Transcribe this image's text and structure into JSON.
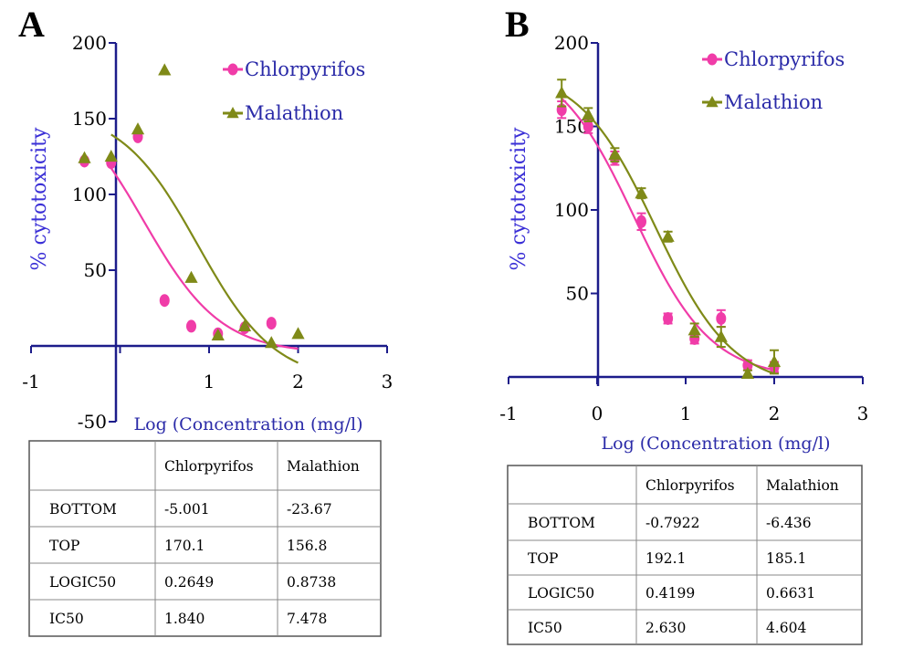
{
  "panels": [
    {
      "letter": "A",
      "chart_data": {
        "type": "scatter",
        "title": "",
        "xlabel": "Log (Concentration (mg/l)",
        "ylabel": "% cytotoxicity",
        "xlim": [
          -1,
          3
        ],
        "ylim": [
          -50,
          200
        ],
        "x_ticks": [
          "-1",
          "1",
          "2",
          "3"
        ],
        "y_ticks": [
          "-50",
          "50",
          "100",
          "150",
          "200"
        ],
        "legend_position": "top-right",
        "series": [
          {
            "name": "Chlorpyrifos",
            "color": "#f03ca8",
            "marker": "circle",
            "points": [
              [
                -0.4,
                122
              ],
              [
                -0.1,
                121
              ],
              [
                0.2,
                138
              ],
              [
                0.5,
                30
              ],
              [
                0.8,
                13
              ],
              [
                1.1,
                8
              ],
              [
                1.4,
                12
              ],
              [
                1.7,
                15
              ]
            ],
            "fit": {
              "bottom": -5.001,
              "top": 170.1,
              "logic50": 0.2649,
              "x_range": [
                -0.1,
                2.0
              ]
            }
          },
          {
            "name": "Malathion",
            "color": "#7f8a18",
            "marker": "triangle",
            "points": [
              [
                -0.4,
                124
              ],
              [
                -0.1,
                125
              ],
              [
                0.2,
                143
              ],
              [
                0.5,
                182
              ],
              [
                0.8,
                45
              ],
              [
                1.1,
                7
              ],
              [
                1.4,
                13
              ],
              [
                1.7,
                2
              ],
              [
                2.0,
                8
              ]
            ],
            "fit": {
              "bottom": -23.67,
              "top": 156.8,
              "logic50": 0.8738,
              "x_range": [
                -0.1,
                2.0
              ]
            }
          }
        ]
      },
      "table": {
        "headers": [
          "",
          "Chlorpyrifos",
          "Malathion"
        ],
        "rows": [
          [
            "BOTTOM",
            "-5.001",
            "-23.67"
          ],
          [
            "TOP",
            "170.1",
            "156.8"
          ],
          [
            "LOGIC50",
            "0.2649",
            "0.8738"
          ],
          [
            "IC50",
            "1.840",
            "7.478"
          ]
        ]
      }
    },
    {
      "letter": "B",
      "chart_data": {
        "type": "scatter",
        "title": "",
        "xlabel": "Log (Concentration (mg/l)",
        "ylabel": "% cytotoxicity",
        "xlim": [
          -1,
          3
        ],
        "ylim": [
          0,
          200
        ],
        "x_ticks": [
          "-1",
          "0",
          "1",
          "2",
          "3"
        ],
        "y_ticks": [
          "50",
          "100",
          "150",
          "200"
        ],
        "legend_position": "top-right",
        "series": [
          {
            "name": "Chlorpyrifos",
            "color": "#f03ca8",
            "marker": "circle",
            "points": [
              [
                -0.4,
                160
              ],
              [
                -0.1,
                150
              ],
              [
                0.2,
                131
              ],
              [
                0.5,
                93
              ],
              [
                0.8,
                35
              ],
              [
                1.1,
                23
              ],
              [
                1.4,
                35
              ],
              [
                1.7,
                7
              ],
              [
                2.0,
                6
              ]
            ],
            "errors": [
              5,
              4,
              4,
              5,
              3,
              3,
              5,
              3,
              3
            ],
            "fit": {
              "bottom": -0.7922,
              "top": 192.1,
              "logic50": 0.4199,
              "x_range": [
                -0.4,
                2.0
              ]
            }
          },
          {
            "name": "Malathion",
            "color": "#7f8a18",
            "marker": "triangle",
            "points": [
              [
                -0.4,
                170
              ],
              [
                -0.1,
                157
              ],
              [
                0.2,
                133
              ],
              [
                0.5,
                110
              ],
              [
                0.8,
                84
              ],
              [
                1.1,
                28
              ],
              [
                1.4,
                24
              ],
              [
                1.7,
                2
              ],
              [
                2.0,
                9
              ]
            ],
            "errors": [
              8,
              4,
              4,
              3,
              3,
              4,
              6,
              2,
              7
            ],
            "fit": {
              "bottom": -6.436,
              "top": 185.1,
              "logic50": 0.6631,
              "x_range": [
                -0.4,
                2.0
              ]
            }
          }
        ]
      },
      "table": {
        "headers": [
          "",
          "Chlorpyrifos",
          "Malathion"
        ],
        "rows": [
          [
            "BOTTOM",
            "-0.7922",
            "-6.436"
          ],
          [
            "TOP",
            "192.1",
            "185.1"
          ],
          [
            "LOGIC50",
            "0.4199",
            "0.6631"
          ],
          [
            "IC50",
            "2.630",
            "4.604"
          ]
        ]
      }
    }
  ]
}
